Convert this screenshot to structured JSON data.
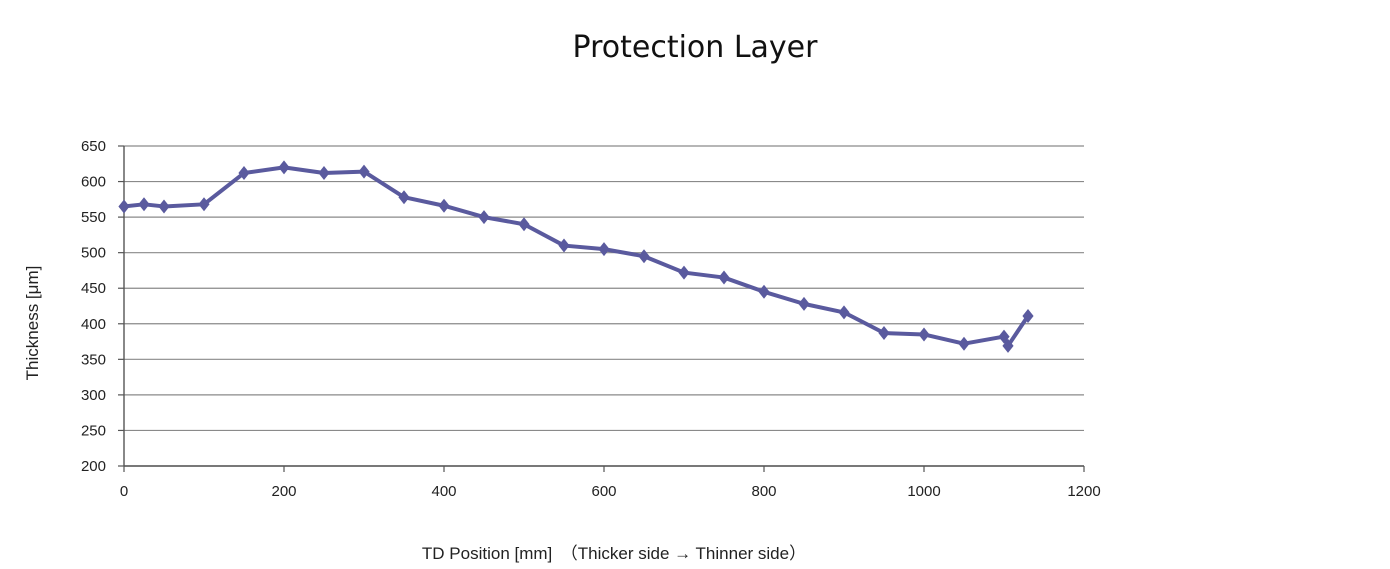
{
  "chart_data": {
    "type": "line",
    "title": "Protection Layer",
    "xlabel": "TD Position [mm]　（Thicker side → Thinner side）",
    "ylabel": "Thickness [μm]",
    "xlim": [
      0,
      1200
    ],
    "ylim": [
      200,
      650
    ],
    "xticks": [
      0,
      200,
      400,
      600,
      800,
      1000,
      1200
    ],
    "yticks": [
      200,
      250,
      300,
      350,
      400,
      450,
      500,
      550,
      600,
      650
    ],
    "grid": "horizontal",
    "color": "#5a5a9e",
    "series": [
      {
        "x": [
          0,
          25,
          50,
          100,
          150,
          200,
          250,
          300,
          350,
          400,
          450,
          500,
          550,
          600,
          650,
          700,
          750,
          800,
          850,
          900,
          950,
          1000,
          1050,
          1100,
          1105,
          1130
        ],
        "y": [
          565,
          568,
          565,
          568,
          612,
          620,
          612,
          614,
          578,
          566,
          550,
          540,
          510,
          505,
          495,
          472,
          465,
          445,
          428,
          416,
          387,
          385,
          372,
          382,
          369,
          411
        ]
      }
    ]
  }
}
